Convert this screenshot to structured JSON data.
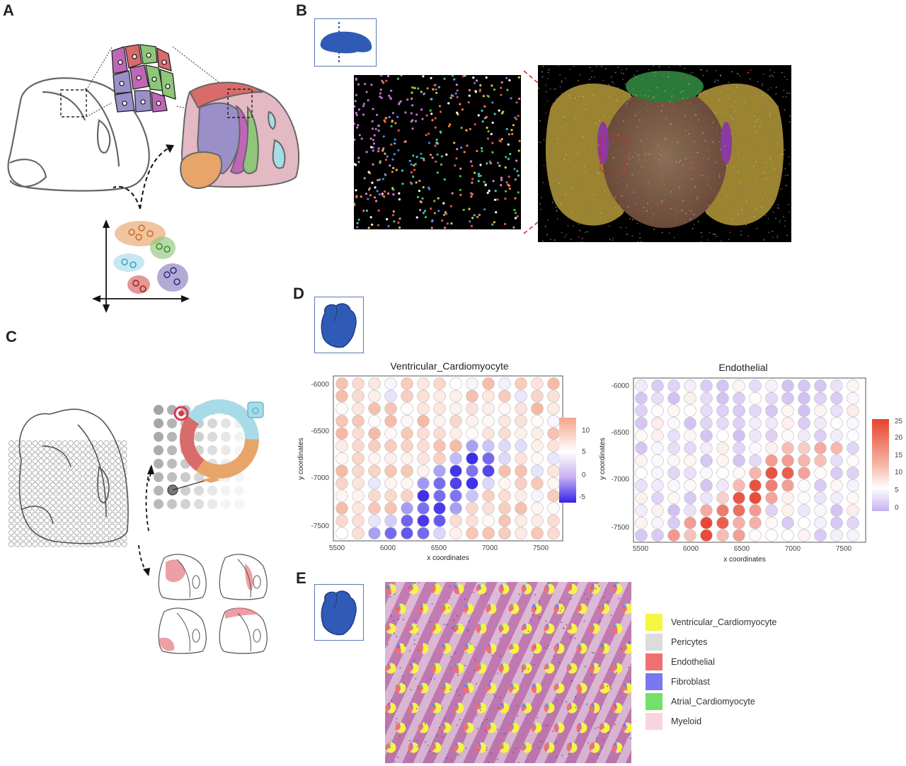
{
  "panels": {
    "a": "A",
    "b": "B",
    "c": "C",
    "d": "D",
    "e": "E"
  },
  "colors": {
    "salmon": "#e8a56a",
    "purple": "#9a8fc8",
    "pink_region": "#e3b9c3",
    "red": "#d96b6b",
    "green": "#8fc77a",
    "lightblue": "#a7dbe8",
    "magenta": "#c066b8",
    "brain_blue": "#2f5bb7",
    "heat_blue": "#3322e8",
    "heat_red": "#e8412f"
  },
  "heatmap_left": {
    "title": "Ventricular_Cardiomyocyte",
    "xlabel": "x coordinates",
    "ylabel": "y coordinates",
    "xticks": [
      "5500",
      "6000",
      "6500",
      "7000",
      "7500"
    ],
    "yticks": [
      "-6000",
      "-6500",
      "-7000",
      "-7500"
    ],
    "colorbar_ticks": [
      "10",
      "5",
      "0",
      "-5"
    ]
  },
  "heatmap_right": {
    "title": "Endothelial",
    "xlabel": "x coordinates",
    "ylabel": "y coordinates",
    "xticks": [
      "5500",
      "6000",
      "6500",
      "7000",
      "7500"
    ],
    "yticks": [
      "-6000",
      "-6500",
      "-7000",
      "-7500"
    ],
    "colorbar_ticks": [
      "25",
      "20",
      "15",
      "10",
      "5",
      "0"
    ]
  },
  "legend_e": [
    {
      "label": "Ventricular_Cardiomyocyte",
      "color": "#f5f542"
    },
    {
      "label": "Pericytes",
      "color": "#dcdcdc"
    },
    {
      "label": "Endothelial",
      "color": "#f07070"
    },
    {
      "label": "Fibroblast",
      "color": "#7a78f0"
    },
    {
      "label": "Atrial_Cardiomyocyte",
      "color": "#74e06a"
    },
    {
      "label": "Myeloid",
      "color": "#f8d5dc"
    }
  ]
}
